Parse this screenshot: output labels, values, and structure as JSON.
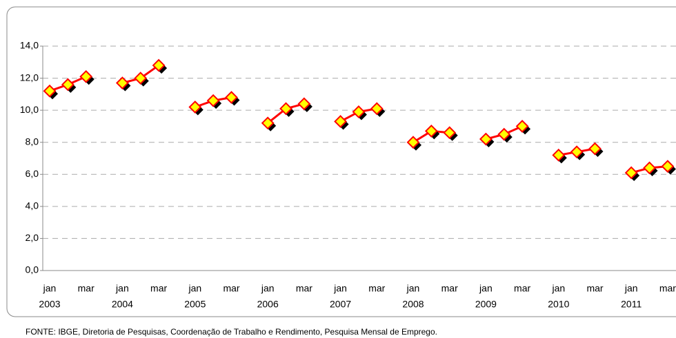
{
  "chart_data": {
    "type": "line",
    "categories": [
      "jan",
      null,
      "mar",
      null,
      "jan",
      null,
      "mar",
      null,
      "jan",
      null,
      "mar",
      null,
      "jan",
      null,
      "mar",
      null,
      "jan",
      null,
      "mar",
      null,
      "jan",
      null,
      "mar",
      null,
      "jan",
      null,
      "mar",
      null,
      "jan",
      null,
      "mar",
      null,
      "jan",
      null,
      "mar"
    ],
    "years": [
      "2003",
      null,
      null,
      null,
      "2004",
      null,
      null,
      null,
      "2005",
      null,
      null,
      null,
      "2006",
      null,
      null,
      null,
      "2007",
      null,
      null,
      null,
      "2008",
      null,
      null,
      null,
      "2009",
      null,
      null,
      null,
      "2010",
      null,
      null,
      null,
      "2011",
      null,
      null
    ],
    "values": [
      11.2,
      11.6,
      12.1,
      null,
      11.7,
      12.0,
      12.8,
      null,
      10.2,
      10.6,
      10.8,
      null,
      9.2,
      10.1,
      10.4,
      null,
      9.3,
      9.9,
      10.1,
      null,
      8.0,
      8.7,
      8.6,
      null,
      8.2,
      8.5,
      9.0,
      null,
      7.2,
      7.4,
      7.6,
      null,
      6.1,
      6.4,
      6.5
    ],
    "color": "#ff0000",
    "marker_color": "#ffff00",
    "ylim": [
      0,
      14
    ],
    "yticks": [
      {
        "value": 0,
        "label": "0,0"
      },
      {
        "value": 2,
        "label": "2,0"
      },
      {
        "value": 4,
        "label": "4,0"
      },
      {
        "value": 6,
        "label": "6,0"
      },
      {
        "value": 8,
        "label": "8,0"
      },
      {
        "value": 10,
        "label": "10,0"
      },
      {
        "value": 12,
        "label": "12,0"
      },
      {
        "value": 14,
        "label": "14,0"
      }
    ],
    "grid": true
  },
  "source": "FONTE: IBGE, Diretoria de Pesquisas, Coordenação de Trabalho e Rendimento, Pesquisa Mensal de Emprego."
}
